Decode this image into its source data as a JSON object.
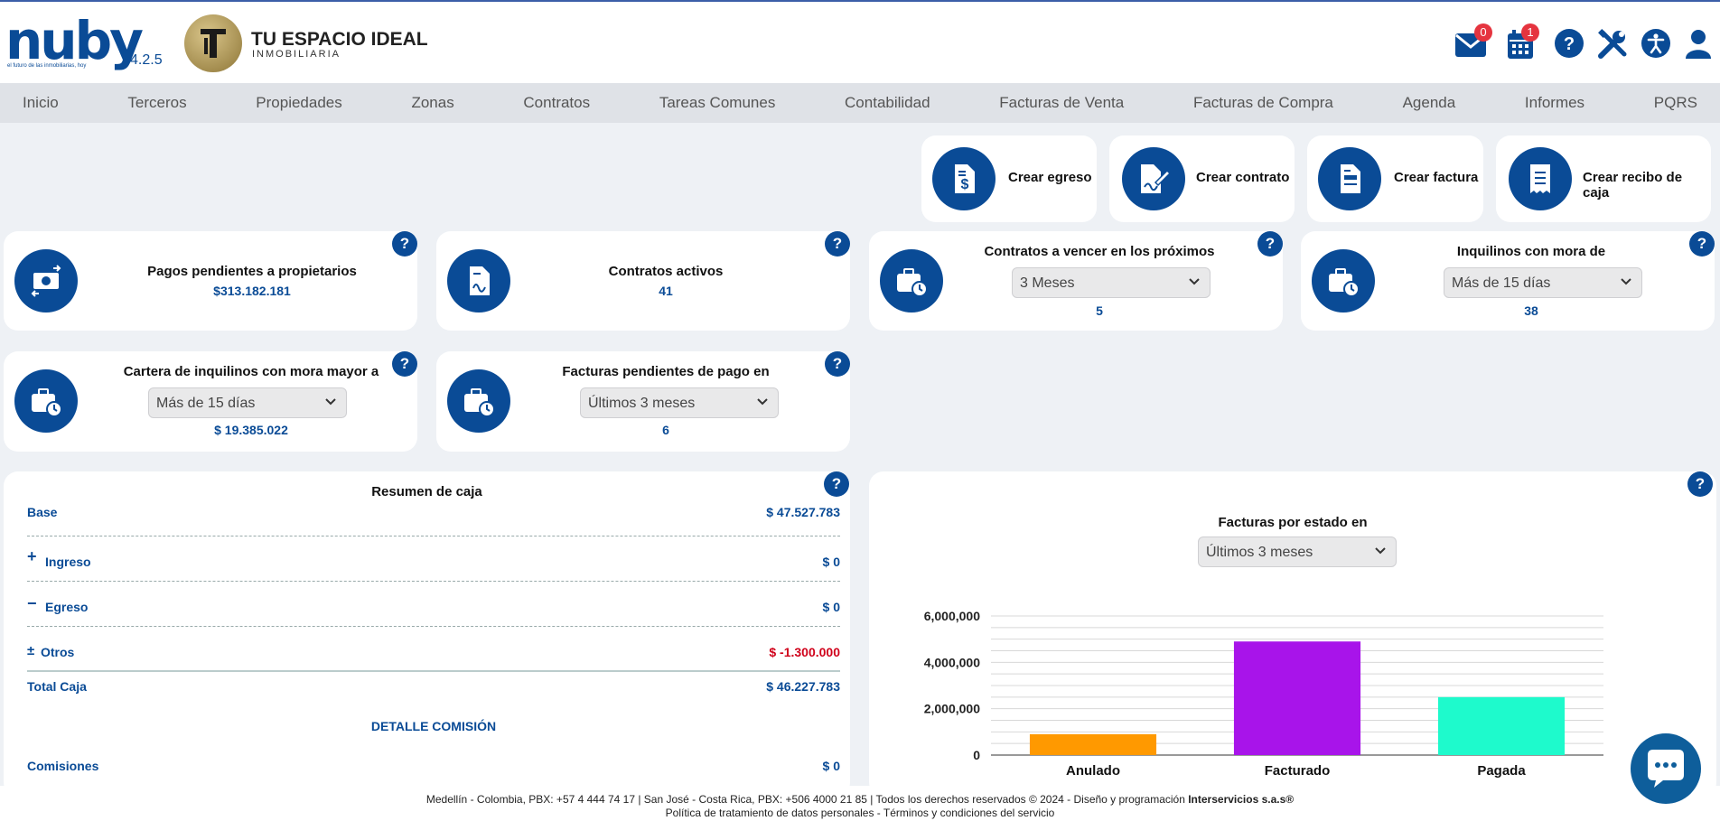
{
  "brand": {
    "logo_text": "nuby",
    "tagline": "el futuro de las inmobiliarias, hoy",
    "version": "v4.2.5",
    "company_name": "TU ESPACIO IDEAL",
    "company_sub": "INMOBILIARIA"
  },
  "header": {
    "mail_badge": "0",
    "calendar_badge": "1",
    "icons": [
      "mail-icon",
      "calendar-icon",
      "help-icon",
      "tools-icon",
      "accessibility-icon",
      "user-icon"
    ]
  },
  "nav": [
    "Inicio",
    "Terceros",
    "Propiedades",
    "Zonas",
    "Contratos",
    "Tareas Comunes",
    "Contabilidad",
    "Facturas de Venta",
    "Facturas de Compra",
    "Agenda",
    "Informes",
    "PQRS"
  ],
  "quick_actions": [
    {
      "label": "Crear egreso",
      "icon": "invoice-dollar-icon"
    },
    {
      "label": "Crear contrato",
      "icon": "contract-sign-icon"
    },
    {
      "label": "Crear factura",
      "icon": "invoice-icon"
    },
    {
      "label": "Crear recibo de caja",
      "icon": "receipt-icon"
    }
  ],
  "kpis": {
    "pagos": {
      "title": "Pagos pendientes a propietarios",
      "value": "$313.182.181"
    },
    "contratos": {
      "title": "Contratos activos",
      "value": "41"
    },
    "vencer": {
      "title": "Contratos a vencer en los próximos",
      "select": "3 Meses",
      "value": "5"
    },
    "mora": {
      "title": "Inquilinos con mora de",
      "select": "Más de 15 días",
      "value": "38"
    },
    "cartera": {
      "title": "Cartera de inquilinos con mora mayor a",
      "select": "Más de 15 días",
      "value": "$ 19.385.022"
    },
    "facturas": {
      "title": "Facturas pendientes de pago en",
      "select": "Últimos 3 meses",
      "value": "6"
    }
  },
  "caja": {
    "title": "Resumen de caja",
    "rows": [
      {
        "prefix": "",
        "label": "Base",
        "value": "$ 47.527.783"
      },
      {
        "prefix": "+",
        "label": "Ingreso",
        "value": "$ 0"
      },
      {
        "prefix": "−",
        "label": "Egreso",
        "value": "$ 0"
      },
      {
        "prefix": "±",
        "label": "Otros",
        "value": "$ -1.300.000"
      }
    ],
    "total_label": "Total Caja",
    "total_value": "$ 46.227.783",
    "detalle_title": "DETALLE COMISIÓN",
    "comisiones_label": "Comisiones",
    "comisiones_value": "$ 0",
    "negative_color": "#d0021b"
  },
  "chart_section": {
    "title": "Facturas por estado en",
    "select": "Últimos 3 meses"
  },
  "chart_data": {
    "type": "bar",
    "categories": [
      "Anulado",
      "Facturado",
      "Pagada"
    ],
    "values": [
      900000,
      4900000,
      2500000
    ],
    "colors": [
      "#ff9900",
      "#a814ea",
      "#1efacc"
    ],
    "ylim": [
      0,
      6000000
    ],
    "yticks": [
      "0",
      "2,000,000",
      "4,000,000",
      "6,000,000"
    ],
    "ytick_values": [
      0,
      2000000,
      4000000,
      6000000
    ],
    "grid": true
  },
  "footer": {
    "line1": "Medellín - Colombia, PBX: +57 4 444 74 17 | San José - Costa Rica, PBX: +506 4000 21 85 | Todos los derechos reservados © 2024 - Diseño y programación",
    "brand": "Interservicios s.a.s®",
    "line2": "Política de tratamiento de datos personales - Términos y condiciones del servicio"
  },
  "colors": {
    "primary": "#0a4b96",
    "help": "#0a4b96"
  }
}
